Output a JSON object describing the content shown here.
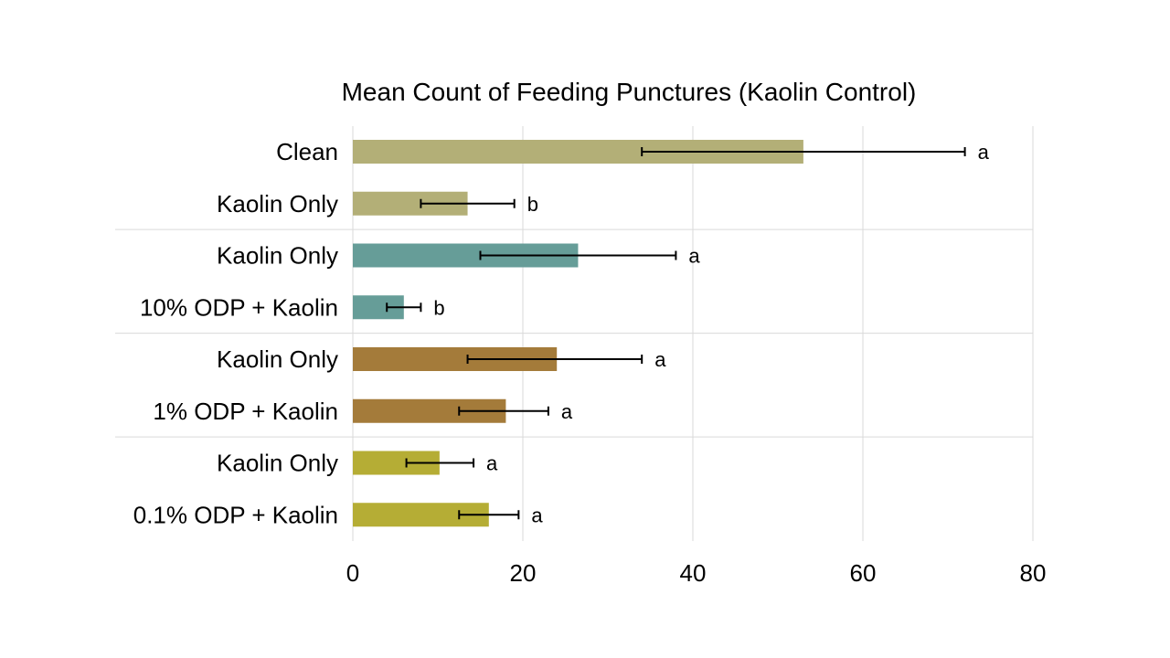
{
  "chart_data": {
    "type": "bar",
    "orientation": "horizontal",
    "title": "Mean Count of Feeding Punctures (Kaolin Control)",
    "xlabel": "",
    "ylabel": "",
    "xlim": [
      0,
      80
    ],
    "xticks": [
      0,
      20,
      40,
      60,
      80
    ],
    "grid": "vertical",
    "legend": "none",
    "bars": [
      {
        "label": "Clean",
        "value": 53,
        "err_low": 34,
        "err_high": 72,
        "sig": "a",
        "color": "#b3af77",
        "group": 1
      },
      {
        "label": "Kaolin Only",
        "value": 13.5,
        "err_low": 8,
        "err_high": 19,
        "sig": "b",
        "color": "#b3af77",
        "group": 1
      },
      {
        "label": "Kaolin Only",
        "value": 26.5,
        "err_low": 15,
        "err_high": 38,
        "sig": "a",
        "color": "#669d98",
        "group": 2
      },
      {
        "label": "10% ODP + Kaolin",
        "value": 6,
        "err_low": 4,
        "err_high": 8,
        "sig": "b",
        "color": "#669d98",
        "group": 2
      },
      {
        "label": "Kaolin Only",
        "value": 24,
        "err_low": 13.5,
        "err_high": 34,
        "sig": "a",
        "color": "#a47b3a",
        "group": 3
      },
      {
        "label": "1% ODP + Kaolin",
        "value": 18,
        "err_low": 12.5,
        "err_high": 23,
        "sig": "a",
        "color": "#a47b3a",
        "group": 3
      },
      {
        "label": "Kaolin Only",
        "value": 10.2,
        "err_low": 6.3,
        "err_high": 14.2,
        "sig": "a",
        "color": "#b5ad35",
        "group": 4
      },
      {
        "label": "0.1% ODP + Kaolin",
        "value": 16,
        "err_low": 12.5,
        "err_high": 19.5,
        "sig": "a",
        "color": "#b5ad35",
        "group": 4
      }
    ]
  }
}
